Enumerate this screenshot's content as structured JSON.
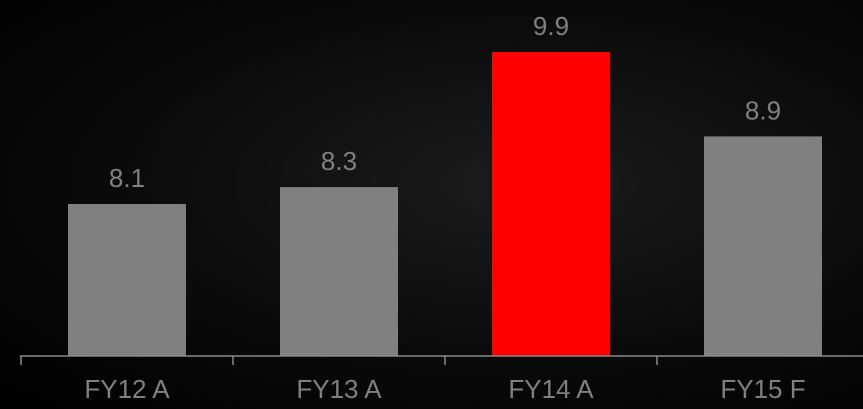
{
  "chart_data": {
    "type": "bar",
    "categories": [
      "FY12 A",
      "FY13 A",
      "FY14 A",
      "FY15 F"
    ],
    "values": [
      8.1,
      8.3,
      9.9,
      8.9
    ],
    "value_labels": [
      "8.1",
      "8.3",
      "9.9",
      "8.9"
    ],
    "bar_colors": [
      "#808080",
      "#808080",
      "#ff0000",
      "#808080"
    ],
    "highlight_category": "FY14 A",
    "title": "",
    "xlabel": "",
    "ylabel": "",
    "ylim": [
      6.3,
      10.2
    ],
    "grid": false,
    "legend": "none"
  },
  "colors": {
    "background": "#000000",
    "bar_default": "#808080",
    "bar_highlight": "#ff0000",
    "text": "#808080",
    "axis": "#8a8a8a"
  }
}
